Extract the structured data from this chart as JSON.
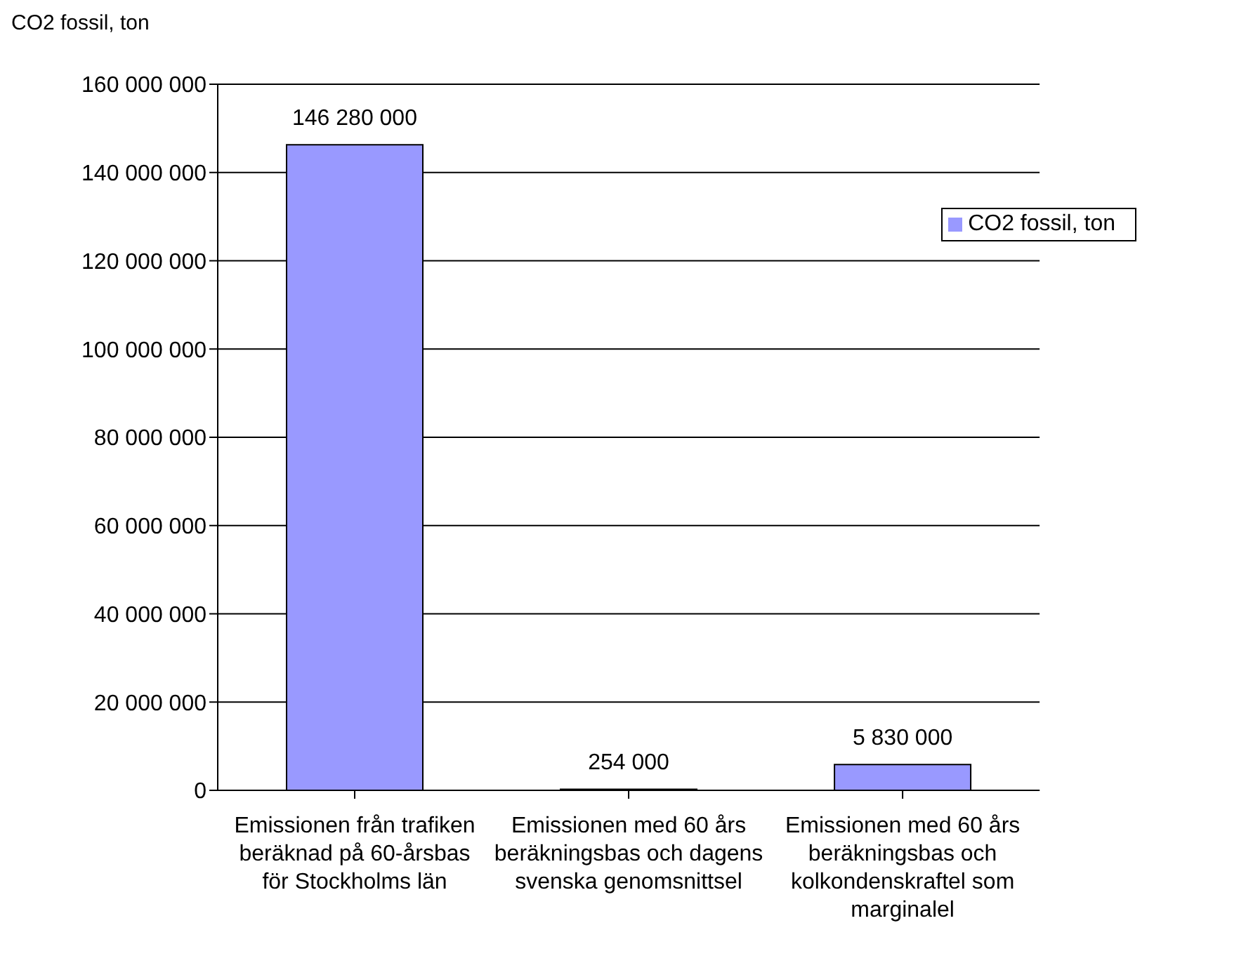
{
  "chart_data": {
    "type": "bar",
    "ylabel": "CO2 fossil, ton",
    "categories": [
      "Emissionen från trafiken beräknad på 60-årsbas för Stockholms län",
      "Emissionen med 60 års beräkningsbas och dagens svenska genomsnittsel",
      "Emissionen med 60 års beräkningsbas och kolkondenskraftel som marginalel"
    ],
    "series": [
      {
        "name": "CO2 fossil, ton",
        "color": "#9999ff",
        "values": [
          146280000,
          254000,
          5830000
        ],
        "value_labels": [
          "146 280 000",
          "254 000",
          "5 830 000"
        ]
      }
    ],
    "ylim": [
      0,
      160000000
    ],
    "yticks": [
      {
        "value": 0,
        "label": "0"
      },
      {
        "value": 20000000,
        "label": "20 000 000"
      },
      {
        "value": 40000000,
        "label": "40 000 000"
      },
      {
        "value": 60000000,
        "label": "60 000 000"
      },
      {
        "value": 80000000,
        "label": "80 000 000"
      },
      {
        "value": 100000000,
        "label": "100 000 000"
      },
      {
        "value": 120000000,
        "label": "120 000 000"
      },
      {
        "value": 140000000,
        "label": "140 000 000"
      },
      {
        "value": 160000000,
        "label": "160 000 000"
      }
    ],
    "grid": "y",
    "legend": "top right"
  }
}
